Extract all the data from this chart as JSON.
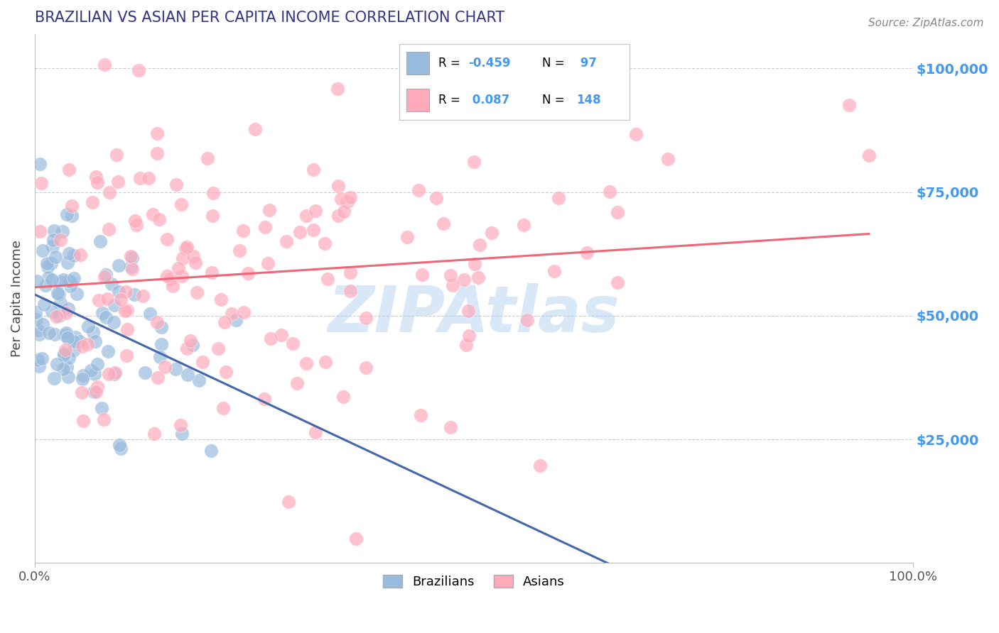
{
  "title": "BRAZILIAN VS ASIAN PER CAPITA INCOME CORRELATION CHART",
  "source_text": "Source: ZipAtlas.com",
  "ylabel": "Per Capita Income",
  "xlim": [
    0.0,
    100.0
  ],
  "ylim": [
    0,
    107000
  ],
  "yticks": [
    0,
    25000,
    50000,
    75000,
    100000
  ],
  "ytick_labels": [
    "",
    "$25,000",
    "$50,000",
    "$75,000",
    "$100,000"
  ],
  "blue_color": "#99BBDD",
  "pink_color": "#FFAABB",
  "blue_line_color": "#4466AA",
  "pink_line_color": "#EE6677",
  "title_color": "#333388",
  "ytick_color": "#4499EE",
  "background_color": "#FFFFFF",
  "grid_color": "#CCCCCC",
  "watermark_text": "ZIPAtlas",
  "watermark_color": "#AACCEE",
  "legend_val_color": "#4499EE",
  "legend_r_label": "R = ",
  "legend_n_label": "N = ",
  "r1_val": "-0.459",
  "n1_val": " 97",
  "r2_val": " 0.087",
  "n2_val": "148",
  "brazil_label": "Brazilians",
  "asian_label": "Asians"
}
